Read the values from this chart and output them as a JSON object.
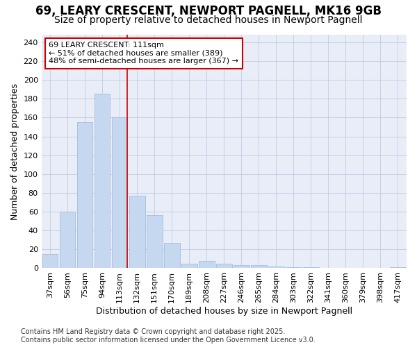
{
  "title_line1": "69, LEARY CRESCENT, NEWPORT PAGNELL, MK16 9GB",
  "title_line2": "Size of property relative to detached houses in Newport Pagnell",
  "xlabel": "Distribution of detached houses by size in Newport Pagnell",
  "ylabel": "Number of detached properties",
  "categories": [
    "37sqm",
    "56sqm",
    "75sqm",
    "94sqm",
    "113sqm",
    "132sqm",
    "151sqm",
    "170sqm",
    "189sqm",
    "208sqm",
    "227sqm",
    "246sqm",
    "265sqm",
    "284sqm",
    "303sqm",
    "322sqm",
    "341sqm",
    "360sqm",
    "379sqm",
    "398sqm",
    "417sqm"
  ],
  "values": [
    15,
    60,
    155,
    185,
    160,
    77,
    56,
    27,
    5,
    8,
    5,
    3,
    3,
    2,
    1,
    1,
    0,
    0,
    0,
    0,
    1
  ],
  "bar_color": "#c5d8f0",
  "bar_edge_color": "#9bb8d8",
  "highlight_index": 4,
  "highlight_line_color": "#cc0000",
  "annotation_line1": "69 LEARY CRESCENT: 111sqm",
  "annotation_line2": "← 51% of detached houses are smaller (389)",
  "annotation_line3": "48% of semi-detached houses are larger (367) →",
  "annotation_box_color": "#ffffff",
  "annotation_box_edge": "#cc0000",
  "ylim": [
    0,
    248
  ],
  "yticks": [
    0,
    20,
    40,
    60,
    80,
    100,
    120,
    140,
    160,
    180,
    200,
    220,
    240
  ],
  "grid_color": "#c0cce0",
  "fig_bg_color": "#ffffff",
  "plot_bg_color": "#e8edf8",
  "footnote": "Contains HM Land Registry data © Crown copyright and database right 2025.\nContains public sector information licensed under the Open Government Licence v3.0.",
  "title_fontsize": 12,
  "subtitle_fontsize": 10,
  "tick_fontsize": 8,
  "axis_label_fontsize": 9,
  "footnote_fontsize": 7
}
